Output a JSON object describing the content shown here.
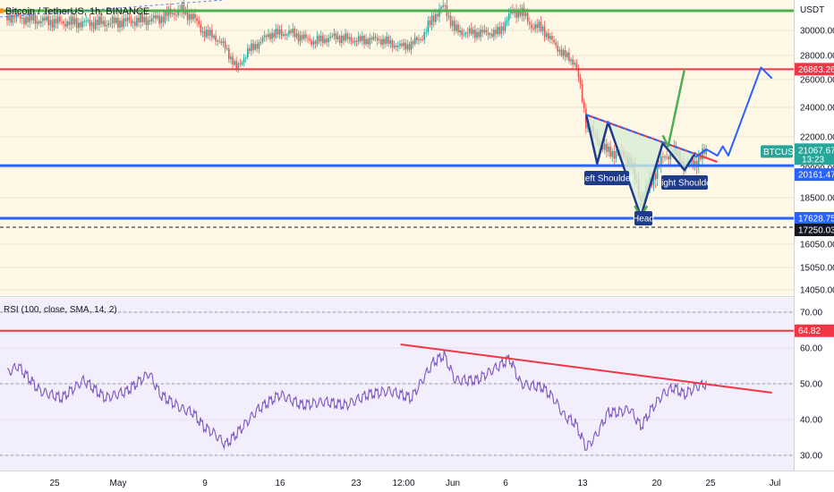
{
  "symbol_title": "Bitcoin / TetherUS, 1h, BINANCE",
  "currency": "USDT",
  "rsi_title": "RSI (100, close, SMA, 14, 2)",
  "colors": {
    "price_bg": "#fff8e6",
    "rsi_bg": "#f3eefc",
    "up": "#26a69a",
    "down": "#ef5350",
    "resistance_green": "#4caf50",
    "red_level": "#f23645",
    "blue_level": "#2962ff",
    "rsi_line": "#7e57c2",
    "pattern_navy": "#1e3a8a",
    "pattern_fill": "#d7ecd5"
  },
  "chart_data": [
    {
      "type": "candlestick",
      "title": "Bitcoin / TetherUS, 1h, BINANCE",
      "y_axis_label": "USDT",
      "y_ticks": [
        30000,
        28000,
        26000,
        24000,
        22000,
        20000,
        18500,
        16050,
        15050,
        14050
      ],
      "y_tick_labels": [
        "30000.00",
        "28000.00",
        "26000.00",
        "24000.00",
        "22000.00",
        "20000.00",
        "18500.00",
        "16050.00",
        "15050.00",
        "14050.00"
      ],
      "x_tick_labels": [
        "25",
        "May",
        "9",
        "16",
        "23",
        "12:00",
        "Jun",
        "6",
        "13",
        "20",
        "25",
        "Jul"
      ],
      "path_points": [
        {
          "date": "2022-04-21",
          "close": 30950
        },
        {
          "date": "2022-04-24",
          "close": 30650
        },
        {
          "date": "2022-04-27",
          "close": 30500
        },
        {
          "date": "2022-04-30",
          "close": 30500
        },
        {
          "date": "2022-05-03",
          "close": 30650
        },
        {
          "date": "2022-05-05",
          "close": 30800
        },
        {
          "date": "2022-05-06",
          "close": 31150
        },
        {
          "date": "2022-05-07",
          "close": 31300
        },
        {
          "date": "2022-05-08",
          "close": 30900
        },
        {
          "date": "2022-05-09",
          "close": 29800
        },
        {
          "date": "2022-05-10",
          "close": 29500
        },
        {
          "date": "2022-05-11",
          "close": 28600
        },
        {
          "date": "2022-05-12",
          "close": 26900
        },
        {
          "date": "2022-05-13",
          "close": 28300
        },
        {
          "date": "2022-05-15",
          "close": 29700
        },
        {
          "date": "2022-05-17",
          "close": 29800
        },
        {
          "date": "2022-05-19",
          "close": 29100
        },
        {
          "date": "2022-05-21",
          "close": 29500
        },
        {
          "date": "2022-05-23",
          "close": 29200
        },
        {
          "date": "2022-05-25",
          "close": 29300
        },
        {
          "date": "2022-05-27",
          "close": 28700
        },
        {
          "date": "2022-05-28",
          "close": 28900
        },
        {
          "date": "2022-05-29",
          "close": 29500
        },
        {
          "date": "2022-05-30",
          "close": 30900
        },
        {
          "date": "2022-05-31",
          "close": 31600
        },
        {
          "date": "2022-06-01",
          "close": 30000
        },
        {
          "date": "2022-06-02",
          "close": 29800
        },
        {
          "date": "2022-06-04",
          "close": 29800
        },
        {
          "date": "2022-06-05",
          "close": 29800
        },
        {
          "date": "2022-06-06",
          "close": 31100
        },
        {
          "date": "2022-06-07",
          "close": 31300
        },
        {
          "date": "2022-06-08",
          "close": 30300
        },
        {
          "date": "2022-06-09",
          "close": 30100
        },
        {
          "date": "2022-06-10",
          "close": 29000
        },
        {
          "date": "2022-06-11",
          "close": 28000
        },
        {
          "date": "2022-06-12",
          "close": 27400
        },
        {
          "date": "2022-06-13",
          "close": 22900
        },
        {
          "date": "2022-06-14",
          "close": 21800
        },
        {
          "date": "2022-06-15",
          "close": 21000
        },
        {
          "date": "2022-06-16",
          "close": 21000
        },
        {
          "date": "2022-06-17",
          "close": 20500
        },
        {
          "date": "2022-06-18",
          "close": 18400
        },
        {
          "date": "2022-06-19",
          "close": 19400
        },
        {
          "date": "2022-06-20",
          "close": 20600
        },
        {
          "date": "2022-06-21",
          "close": 21100
        },
        {
          "date": "2022-06-22",
          "close": 20200
        },
        {
          "date": "2022-06-23",
          "close": 20400
        },
        {
          "date": "2022-06-24",
          "close": 21100
        }
      ],
      "levels": [
        {
          "value": 31300,
          "color": "green"
        },
        {
          "value": 26863.26,
          "label": "26863.26",
          "color": "red"
        },
        {
          "value": 20161.47,
          "label": "20161.47",
          "color": "blue"
        },
        {
          "value": 17628.75,
          "label": "17628.75",
          "color": "blue"
        },
        {
          "value": 17250.03,
          "label": "17250.03",
          "style": "dashed"
        }
      ],
      "last_price": {
        "value": 21067.67,
        "label": "21067.67",
        "symbol": "BTCUSDT",
        "countdown": "13:23"
      },
      "annotations": [
        "Left Shoulder",
        "Head",
        "Right Shoulder"
      ],
      "pattern": {
        "trendline": [
          {
            "date": "2022-06-13",
            "value": 23500
          },
          {
            "date": "2022-06-25",
            "value": 20400
          }
        ],
        "outline": [
          {
            "date": "2022-06-13",
            "value": 23500
          },
          {
            "date": "2022-06-14",
            "value": 20300
          },
          {
            "date": "2022-06-15",
            "value": 23000
          },
          {
            "date": "2022-06-18",
            "value": 17700
          },
          {
            "date": "2022-06-20",
            "value": 21600
          },
          {
            "date": "2022-06-22",
            "value": 19900
          },
          {
            "date": "2022-06-23",
            "value": 21000
          }
        ],
        "green_target": [
          {
            "date": "2022-06-20",
            "value": 22100
          },
          {
            "date": "2022-06-20.5",
            "value": 21400
          },
          {
            "date": "2022-06-22",
            "value": 26900
          }
        ],
        "blue_projection": [
          {
            "date": "2022-06-23",
            "value": 20700
          },
          {
            "date": "2022-06-24",
            "value": 21200
          },
          {
            "date": "2022-06-25",
            "value": 20800
          },
          {
            "date": "2022-06-25.5",
            "value": 21400
          },
          {
            "date": "2022-06-26",
            "value": 20800
          },
          {
            "date": "2022-06-29",
            "value": 27000
          },
          {
            "date": "2022-06-30",
            "value": 26100
          }
        ]
      }
    },
    {
      "type": "line",
      "title": "RSI (100, close, SMA, 14, 2)",
      "y_ticks": [
        70,
        60,
        50,
        40,
        30
      ],
      "y_tick_labels": [
        "70.00",
        "60.00",
        "50.00",
        "40.00",
        "30.00"
      ],
      "ylim": [
        28,
        74
      ],
      "levels": [
        {
          "value": 64.82,
          "label": "64.82"
        }
      ],
      "points": [
        {
          "date": "2022-04-21",
          "value": 53
        },
        {
          "date": "2022-04-22",
          "value": 55
        },
        {
          "date": "2022-04-24",
          "value": 48
        },
        {
          "date": "2022-04-26",
          "value": 46
        },
        {
          "date": "2022-04-28",
          "value": 51
        },
        {
          "date": "2022-04-30",
          "value": 46
        },
        {
          "date": "2022-05-02",
          "value": 48
        },
        {
          "date": "2022-05-04",
          "value": 53
        },
        {
          "date": "2022-05-05",
          "value": 47
        },
        {
          "date": "2022-05-06",
          "value": 45
        },
        {
          "date": "2022-05-07",
          "value": 43
        },
        {
          "date": "2022-05-08",
          "value": 42
        },
        {
          "date": "2022-05-09",
          "value": 38
        },
        {
          "date": "2022-05-10",
          "value": 36
        },
        {
          "date": "2022-05-11",
          "value": 33
        },
        {
          "date": "2022-05-12",
          "value": 36
        },
        {
          "date": "2022-05-14",
          "value": 43
        },
        {
          "date": "2022-05-16",
          "value": 47
        },
        {
          "date": "2022-05-18",
          "value": 44
        },
        {
          "date": "2022-05-20",
          "value": 45
        },
        {
          "date": "2022-05-22",
          "value": 44
        },
        {
          "date": "2022-05-24",
          "value": 47
        },
        {
          "date": "2022-05-26",
          "value": 48
        },
        {
          "date": "2022-05-28",
          "value": 46
        },
        {
          "date": "2022-05-30",
          "value": 56
        },
        {
          "date": "2022-05-31",
          "value": 58
        },
        {
          "date": "2022-06-01",
          "value": 51
        },
        {
          "date": "2022-06-03",
          "value": 51
        },
        {
          "date": "2022-06-05",
          "value": 55
        },
        {
          "date": "2022-06-06",
          "value": 57
        },
        {
          "date": "2022-06-07",
          "value": 50
        },
        {
          "date": "2022-06-09",
          "value": 49
        },
        {
          "date": "2022-06-10",
          "value": 46
        },
        {
          "date": "2022-06-11",
          "value": 41
        },
        {
          "date": "2022-06-12",
          "value": 39
        },
        {
          "date": "2022-06-13",
          "value": 32
        },
        {
          "date": "2022-06-14",
          "value": 36
        },
        {
          "date": "2022-06-15",
          "value": 42
        },
        {
          "date": "2022-06-16",
          "value": 42
        },
        {
          "date": "2022-06-17",
          "value": 43
        },
        {
          "date": "2022-06-18",
          "value": 38
        },
        {
          "date": "2022-06-19",
          "value": 43
        },
        {
          "date": "2022-06-20",
          "value": 47
        },
        {
          "date": "2022-06-21",
          "value": 49
        },
        {
          "date": "2022-06-22",
          "value": 47
        },
        {
          "date": "2022-06-23",
          "value": 49
        },
        {
          "date": "2022-06-24",
          "value": 50
        }
      ],
      "trendline": [
        {
          "date": "2022-05-27",
          "value": 61
        },
        {
          "date": "2022-06-30",
          "value": 47.5
        }
      ]
    }
  ]
}
